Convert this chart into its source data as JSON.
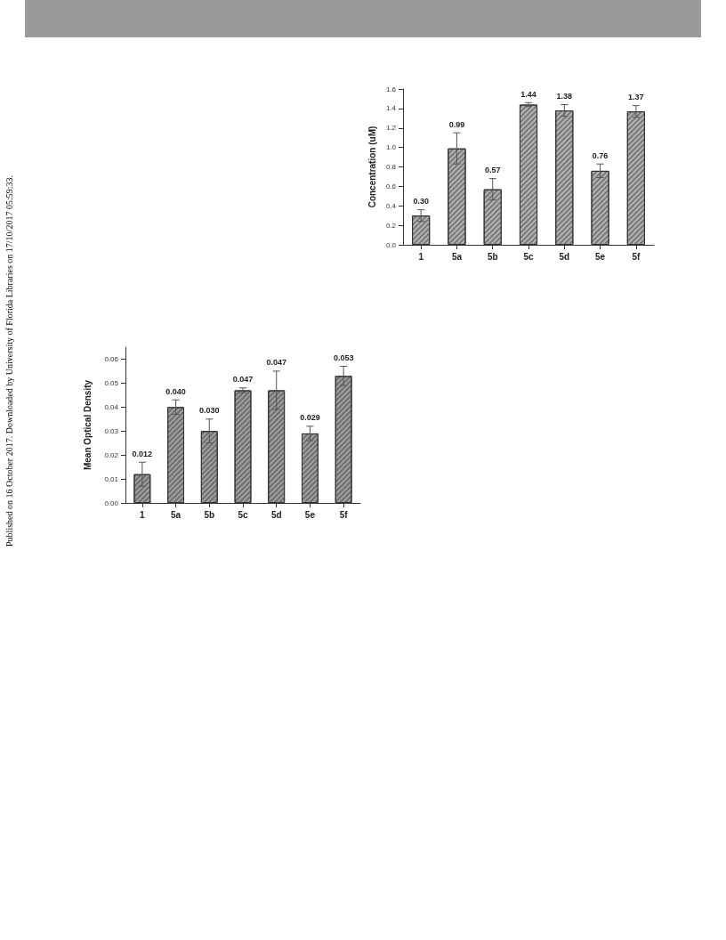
{
  "chart_data": [
    {
      "type": "bar",
      "ylabel": "Concentration (uM)",
      "categories": [
        "1",
        "5a",
        "5b",
        "5c",
        "5d",
        "5e",
        "5f"
      ],
      "values": [
        0.3,
        0.99,
        0.57,
        1.44,
        1.38,
        0.76,
        1.37
      ],
      "value_labels": [
        "0.30",
        "0.99",
        "0.57",
        "1.44",
        "1.38",
        "0.76",
        "1.37"
      ],
      "errors": [
        0.06,
        0.16,
        0.11,
        0.02,
        0.06,
        0.07,
        0.06
      ],
      "color": "#b4b4b4",
      "ylim": [
        0,
        1.6
      ],
      "yticks": [
        {
          "value": 0,
          "label": "0.0"
        },
        {
          "value": 0.2,
          "label": "0.2"
        },
        {
          "value": 0.4,
          "label": "0.4"
        },
        {
          "value": 0.6,
          "label": "0.6"
        },
        {
          "value": 0.8,
          "label": "0.8"
        },
        {
          "value": 1,
          "label": "1.0"
        },
        {
          "value": 1.2,
          "label": "1.2"
        },
        {
          "value": 1.4,
          "label": "1.4"
        },
        {
          "value": 1.6,
          "label": "1.6"
        }
      ]
    },
    {
      "type": "bar",
      "ylabel": "Mean Optical Density",
      "categories": [
        "1",
        "5a",
        "5b",
        "5c",
        "5d",
        "5e",
        "5f"
      ],
      "values": [
        0.012,
        0.04,
        0.03,
        0.047,
        0.047,
        0.029,
        0.053
      ],
      "value_labels": [
        "0.012",
        "0.040",
        "0.030",
        "0.047",
        "0.047",
        "0.029",
        "0.053"
      ],
      "errors": [
        0.005,
        0.003,
        0.005,
        0.001,
        0.008,
        0.003,
        0.004
      ],
      "color": "#a0a0a0",
      "ylim": [
        0,
        0.065
      ],
      "yticks": [
        {
          "value": 0,
          "label": "0.00"
        },
        {
          "value": 0.01,
          "label": "0.01"
        },
        {
          "value": 0.02,
          "label": "0.02"
        },
        {
          "value": 0.03,
          "label": "0.03"
        },
        {
          "value": 0.04,
          "label": "0.04"
        },
        {
          "value": 0.05,
          "label": "0.05"
        },
        {
          "value": 0.06,
          "label": "0.06"
        }
      ],
      "annotations": [
        "Published on 16 October 2017. Downloaded by University of Florida Libraries on 17/10/2017 05:59:33."
      ]
    }
  ]
}
